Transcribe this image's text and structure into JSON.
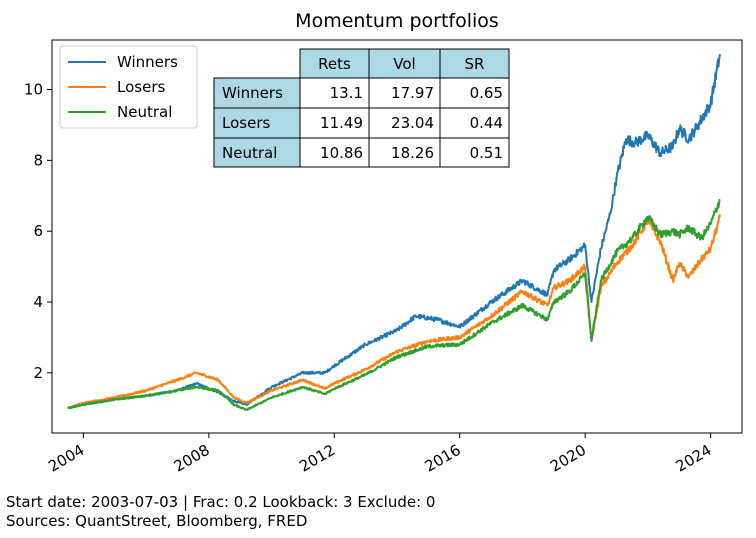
{
  "chart_data": {
    "type": "line",
    "title": "Momentum portfolios",
    "xlabel": "",
    "ylabel": "",
    "xlim": [
      2003.0,
      2025.0
    ],
    "ylim": [
      0.3,
      11.4
    ],
    "xticks": [
      2004,
      2008,
      2012,
      2016,
      2020,
      2024
    ],
    "xtick_labels": [
      "2004",
      "2008",
      "2012",
      "2016",
      "2020",
      "2024"
    ],
    "yticks": [
      2,
      4,
      6,
      8,
      10
    ],
    "ytick_labels": [
      "2",
      "4",
      "6",
      "8",
      "10"
    ],
    "grid": false,
    "legend_position": "top-left",
    "series": [
      {
        "name": "Winners",
        "color": "#1f77b4",
        "x": [
          2003.5,
          2004,
          2005,
          2006,
          2007,
          2007.6,
          2008.3,
          2008.8,
          2009.2,
          2010,
          2011,
          2011.7,
          2012,
          2013,
          2014,
          2014.6,
          2015.3,
          2016,
          2017,
          2018,
          2018.8,
          2019,
          2019.5,
          2020,
          2020.2,
          2020.5,
          2020.8,
          2021,
          2021.3,
          2021.6,
          2022,
          2022.4,
          2022.8,
          2023,
          2023.3,
          2023.6,
          2024,
          2024.3
        ],
        "values": [
          1.0,
          1.1,
          1.25,
          1.35,
          1.5,
          1.7,
          1.45,
          1.2,
          1.1,
          1.6,
          2.0,
          2.0,
          2.2,
          2.8,
          3.2,
          3.6,
          3.5,
          3.3,
          4.0,
          4.6,
          4.2,
          4.9,
          5.2,
          5.6,
          4.0,
          5.5,
          6.5,
          7.5,
          8.6,
          8.5,
          8.7,
          8.2,
          8.4,
          8.9,
          8.6,
          9.0,
          9.6,
          11.0
        ]
      },
      {
        "name": "Losers",
        "color": "#ff7f0e",
        "x": [
          2003.5,
          2004,
          2005,
          2006,
          2007,
          2007.6,
          2008.3,
          2008.8,
          2009.2,
          2010,
          2011,
          2011.7,
          2012,
          2013,
          2014,
          2015,
          2016,
          2017,
          2018,
          2018.8,
          2019,
          2019.5,
          2020,
          2020.2,
          2020.5,
          2021,
          2021.5,
          2022,
          2022.4,
          2022.8,
          2023,
          2023.3,
          2023.7,
          2024,
          2024.3
        ],
        "values": [
          1.0,
          1.15,
          1.3,
          1.5,
          1.8,
          2.0,
          1.8,
          1.3,
          1.15,
          1.5,
          1.8,
          1.55,
          1.7,
          2.1,
          2.6,
          2.9,
          3.0,
          3.6,
          4.3,
          3.9,
          4.4,
          4.6,
          5.0,
          2.9,
          4.4,
          5.1,
          5.6,
          6.3,
          5.7,
          4.6,
          5.1,
          4.7,
          5.2,
          5.5,
          6.4
        ]
      },
      {
        "name": "Neutral",
        "color": "#2ca02c",
        "x": [
          2003.5,
          2004,
          2005,
          2006,
          2007,
          2007.6,
          2008.3,
          2008.8,
          2009.2,
          2010,
          2011,
          2011.7,
          2012,
          2013,
          2014,
          2015,
          2016,
          2017,
          2018,
          2018.8,
          2019,
          2019.5,
          2020,
          2020.2,
          2020.5,
          2021,
          2021.5,
          2022,
          2022.4,
          2022.8,
          2023,
          2023.3,
          2023.7,
          2024,
          2024.3
        ],
        "values": [
          1.0,
          1.1,
          1.25,
          1.35,
          1.5,
          1.6,
          1.5,
          1.1,
          0.95,
          1.3,
          1.6,
          1.4,
          1.55,
          1.95,
          2.45,
          2.75,
          2.8,
          3.4,
          3.9,
          3.5,
          4.0,
          4.3,
          4.8,
          2.9,
          4.6,
          5.4,
          5.8,
          6.4,
          5.9,
          6.0,
          5.9,
          6.1,
          5.8,
          6.2,
          6.9
        ]
      }
    ],
    "table": {
      "columns": [
        "Rets",
        "Vol",
        "SR"
      ],
      "rows": [
        {
          "label": "Winners",
          "values": [
            "13.1",
            "17.97",
            "0.65"
          ]
        },
        {
          "label": "Losers",
          "values": [
            "11.49",
            "23.04",
            "0.44"
          ]
        },
        {
          "label": "Neutral",
          "values": [
            "10.86",
            "18.26",
            "0.51"
          ]
        }
      ],
      "header_color": "#add8e6"
    }
  },
  "footer": {
    "line1": "Start date: 2003-07-03  |  Frac: 0.2  Lookback: 3  Exclude: 0",
    "line2": "Sources: QuantStreet, Bloomberg, FRED"
  }
}
